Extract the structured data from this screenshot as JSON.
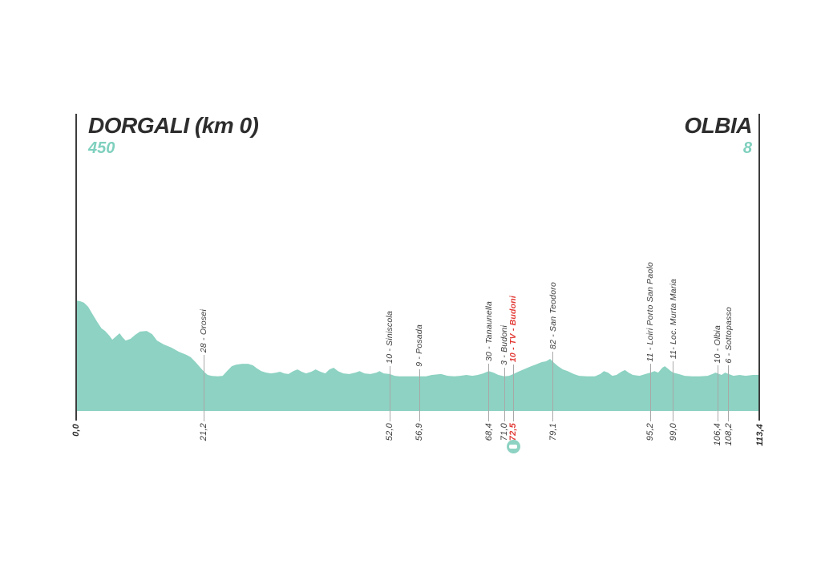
{
  "header": {
    "start_name": "DORGALI (km 0)",
    "start_elevation": "450",
    "end_name": "OLBIA",
    "end_elevation": "8"
  },
  "colors": {
    "profile_fill": "#8DD2C2",
    "elevation_text": "#7FD0BE",
    "title_text": "#2D2D2D",
    "label_text": "#3B3B3B",
    "marker_line": "#A8A8A8",
    "boundary_line": "#3D3D3D",
    "highlight_red": "#E23B36"
  },
  "chart_data": {
    "type": "area",
    "title": "Stage elevation profile Dorgali (km 0) to Olbia",
    "x_unit": "km",
    "y_unit": "m",
    "x_range": [
      0,
      113.4
    ],
    "start": {
      "name": "DORGALI",
      "km": 0.0,
      "elevation_m": 450
    },
    "end": {
      "name": "OLBIA",
      "km": 113.4,
      "elevation_m": 8
    },
    "markers": [
      {
        "km": 0.0,
        "km_label": "0,0",
        "label": "",
        "style": "boundary"
      },
      {
        "km": 21.2,
        "km_label": "21,2",
        "label": "28 - Orosei",
        "style": "default"
      },
      {
        "km": 52.0,
        "km_label": "52,0",
        "label": "10 - Siniscola",
        "style": "default"
      },
      {
        "km": 56.9,
        "km_label": "56,9",
        "label": "9 - Posada",
        "style": "default"
      },
      {
        "km": 68.4,
        "km_label": "68,4",
        "label": "30 - Tanaunella",
        "style": "default"
      },
      {
        "km": 71.0,
        "km_label": "71,0",
        "label": "3 - Budoni",
        "style": "default"
      },
      {
        "km": 72.5,
        "km_label": "72,5",
        "label": "10 - TV - Budoni",
        "style": "red",
        "icon": "sprint-icon"
      },
      {
        "km": 79.1,
        "km_label": "79,1",
        "label": "82 - San Teodoro",
        "style": "default"
      },
      {
        "km": 95.2,
        "km_label": "95,2",
        "label": "11 - Loiri Porto San Paolo",
        "style": "default"
      },
      {
        "km": 99.0,
        "km_label": "99,0",
        "label": "11- Loc. Murta Maria",
        "style": "default"
      },
      {
        "km": 106.4,
        "km_label": "106,4",
        "label": "10 - Olbia",
        "style": "default"
      },
      {
        "km": 108.2,
        "km_label": "108,2",
        "label": "6 - Sottopasso",
        "style": "default"
      },
      {
        "km": 113.4,
        "km_label": "113,4",
        "label": "",
        "style": "boundary"
      }
    ],
    "profile_points_km_elev": [
      [
        0,
        450
      ],
      [
        0.7,
        445
      ],
      [
        1.3,
        436
      ],
      [
        2,
        412
      ],
      [
        2.7,
        369
      ],
      [
        3.5,
        322
      ],
      [
        4.2,
        284
      ],
      [
        4.8,
        269
      ],
      [
        5.5,
        241
      ],
      [
        6,
        217
      ],
      [
        6.6,
        236
      ],
      [
        7.2,
        255
      ],
      [
        7.7,
        231
      ],
      [
        8.2,
        212
      ],
      [
        9,
        222
      ],
      [
        9.8,
        246
      ],
      [
        10.6,
        265
      ],
      [
        11.7,
        269
      ],
      [
        12.6,
        250
      ],
      [
        13.4,
        212
      ],
      [
        14.5,
        189
      ],
      [
        15.8,
        170
      ],
      [
        17,
        146
      ],
      [
        18.3,
        127
      ],
      [
        19,
        113
      ],
      [
        19.8,
        84
      ],
      [
        20.6,
        51
      ],
      [
        21.2,
        27
      ],
      [
        21.8,
        8
      ],
      [
        22.5,
        2
      ],
      [
        23.5,
        0
      ],
      [
        24.3,
        3
      ],
      [
        25,
        31
      ],
      [
        25.8,
        60
      ],
      [
        26.5,
        69
      ],
      [
        27.5,
        74
      ],
      [
        28.5,
        74
      ],
      [
        29.3,
        65
      ],
      [
        30,
        46
      ],
      [
        30.7,
        31
      ],
      [
        31.5,
        22
      ],
      [
        32.3,
        17
      ],
      [
        33.2,
        22
      ],
      [
        33.8,
        27
      ],
      [
        34.5,
        17
      ],
      [
        35.2,
        13
      ],
      [
        36,
        31
      ],
      [
        36.7,
        41
      ],
      [
        37.4,
        27
      ],
      [
        38.1,
        17
      ],
      [
        39,
        27
      ],
      [
        39.7,
        41
      ],
      [
        40.5,
        27
      ],
      [
        41.3,
        17
      ],
      [
        42,
        41
      ],
      [
        42.7,
        51
      ],
      [
        43.4,
        31
      ],
      [
        44.3,
        17
      ],
      [
        45.3,
        13
      ],
      [
        46.3,
        22
      ],
      [
        47,
        31
      ],
      [
        47.8,
        17
      ],
      [
        48.8,
        13
      ],
      [
        49.8,
        22
      ],
      [
        50.3,
        31
      ],
      [
        51,
        17
      ],
      [
        52,
        13
      ],
      [
        52.8,
        3
      ],
      [
        53.6,
        0
      ],
      [
        54.6,
        0
      ],
      [
        55.5,
        0
      ],
      [
        56.9,
        0
      ],
      [
        58,
        0
      ],
      [
        59,
        8
      ],
      [
        60.5,
        13
      ],
      [
        61.6,
        3
      ],
      [
        62.7,
        0
      ],
      [
        63.7,
        3
      ],
      [
        64.7,
        8
      ],
      [
        65.7,
        3
      ],
      [
        66.6,
        8
      ],
      [
        67.5,
        17
      ],
      [
        68.4,
        31
      ],
      [
        69.2,
        22
      ],
      [
        70,
        8
      ],
      [
        71,
        0
      ],
      [
        71.8,
        3
      ],
      [
        72.5,
        13
      ],
      [
        73.3,
        27
      ],
      [
        74.2,
        41
      ],
      [
        75.2,
        56
      ],
      [
        76.2,
        70
      ],
      [
        77.2,
        84
      ],
      [
        77.9,
        89
      ],
      [
        78.6,
        103
      ],
      [
        79.1,
        84
      ],
      [
        79.9,
        60
      ],
      [
        80.7,
        41
      ],
      [
        81.5,
        31
      ],
      [
        82.5,
        13
      ],
      [
        83.4,
        3
      ],
      [
        84.7,
        0
      ],
      [
        86,
        0
      ],
      [
        86.9,
        13
      ],
      [
        87.5,
        31
      ],
      [
        88.2,
        22
      ],
      [
        88.9,
        3
      ],
      [
        89.6,
        8
      ],
      [
        90.4,
        27
      ],
      [
        91,
        37
      ],
      [
        91.6,
        22
      ],
      [
        92.3,
        8
      ],
      [
        93.4,
        3
      ],
      [
        94.4,
        13
      ],
      [
        95.2,
        22
      ],
      [
        95.9,
        31
      ],
      [
        96.5,
        22
      ],
      [
        97.2,
        51
      ],
      [
        97.6,
        60
      ],
      [
        98.1,
        46
      ],
      [
        98.6,
        31
      ],
      [
        99,
        22
      ],
      [
        99.9,
        13
      ],
      [
        100.9,
        3
      ],
      [
        102.1,
        0
      ],
      [
        103.4,
        0
      ],
      [
        104.7,
        3
      ],
      [
        105.5,
        13
      ],
      [
        106,
        22
      ],
      [
        106.4,
        17
      ],
      [
        107,
        8
      ],
      [
        107.6,
        22
      ],
      [
        108.2,
        13
      ],
      [
        109,
        3
      ],
      [
        110,
        8
      ],
      [
        111,
        3
      ],
      [
        112.2,
        8
      ],
      [
        113.4,
        8
      ]
    ]
  }
}
